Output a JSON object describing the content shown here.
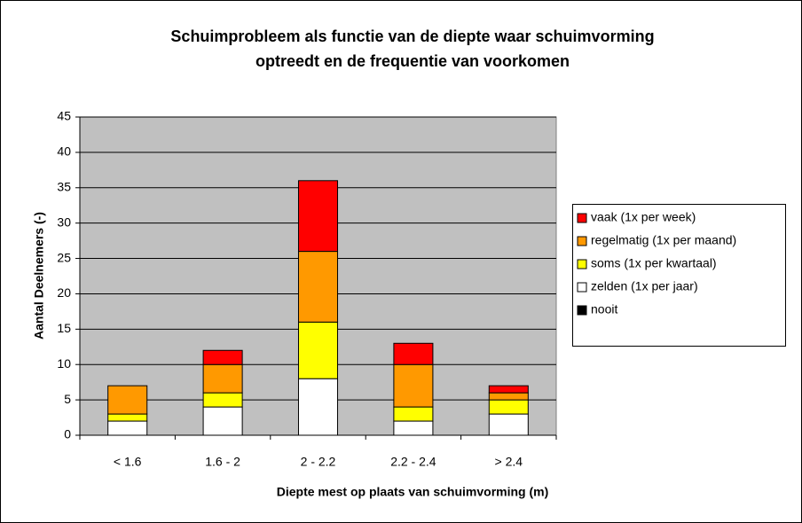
{
  "chart_data": {
    "type": "stacked_bar",
    "title": [
      "Schuimprobleem als functie van de diepte waar schuimvorming",
      "optreedt en de frequentie van voorkomen"
    ],
    "x_label": "Diepte mest op plaats van schuimvorming (m)",
    "y_label": "Aantal Deelnemers (-)",
    "categories": [
      "< 1.6",
      "1.6 - 2",
      "2 - 2.2",
      "2.2 - 2.4",
      "> 2.4"
    ],
    "series": [
      {
        "name": "nooit",
        "color": "#000000",
        "values": [
          0,
          0,
          0,
          0,
          0
        ]
      },
      {
        "name": "zelden (1x per jaar)",
        "color": "#ffffff",
        "values": [
          2,
          4,
          8,
          2,
          3
        ]
      },
      {
        "name": "soms (1x per kwartaal)",
        "color": "#ffff00",
        "values": [
          1,
          2,
          8,
          2,
          2
        ]
      },
      {
        "name": "regelmatig (1x per maand)",
        "color": "#ff9900",
        "values": [
          4,
          4,
          10,
          6,
          1
        ]
      },
      {
        "name": "vaak (1x per week)",
        "color": "#ff0000",
        "values": [
          0,
          2,
          10,
          3,
          1
        ]
      }
    ],
    "ylim": [
      0,
      45
    ],
    "yticks": [
      0,
      5,
      10,
      15,
      20,
      25,
      30,
      35,
      40,
      45
    ],
    "grid": true,
    "legend": "right",
    "plot_background": "#c0c0c0"
  }
}
